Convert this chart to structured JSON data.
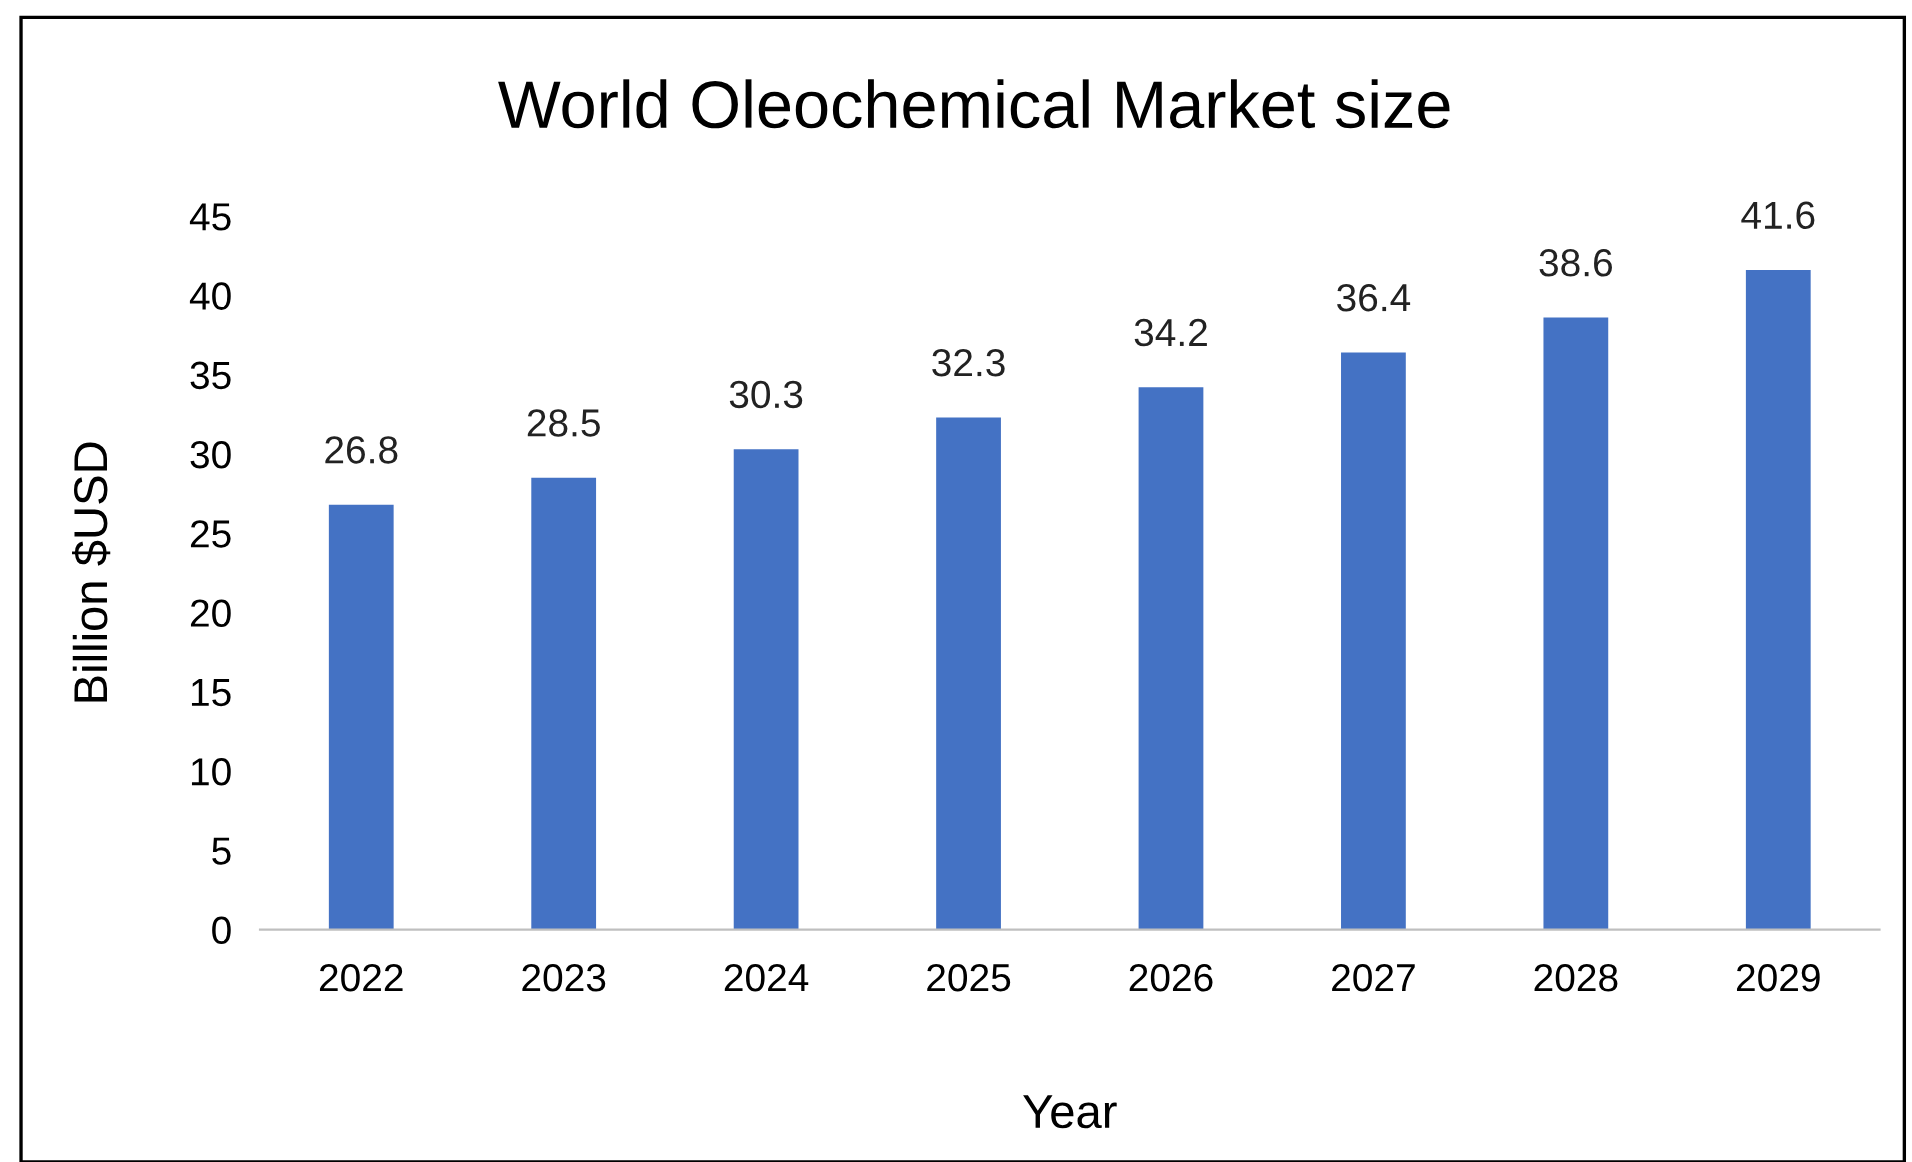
{
  "chart_data": {
    "type": "bar",
    "title": "World Oleochemical Market size",
    "xlabel": "Year",
    "ylabel": "Billion $USD",
    "categories": [
      "2022",
      "2023",
      "2024",
      "2025",
      "2026",
      "2027",
      "2028",
      "2029"
    ],
    "values": [
      26.8,
      28.5,
      30.3,
      32.3,
      34.2,
      36.4,
      38.6,
      41.6
    ],
    "color": "#4472c4",
    "ylim": [
      0,
      45
    ],
    "yticks": [
      0,
      5,
      10,
      15,
      20,
      25,
      30,
      35,
      40,
      45
    ],
    "grid": false,
    "data_labels": true
  }
}
